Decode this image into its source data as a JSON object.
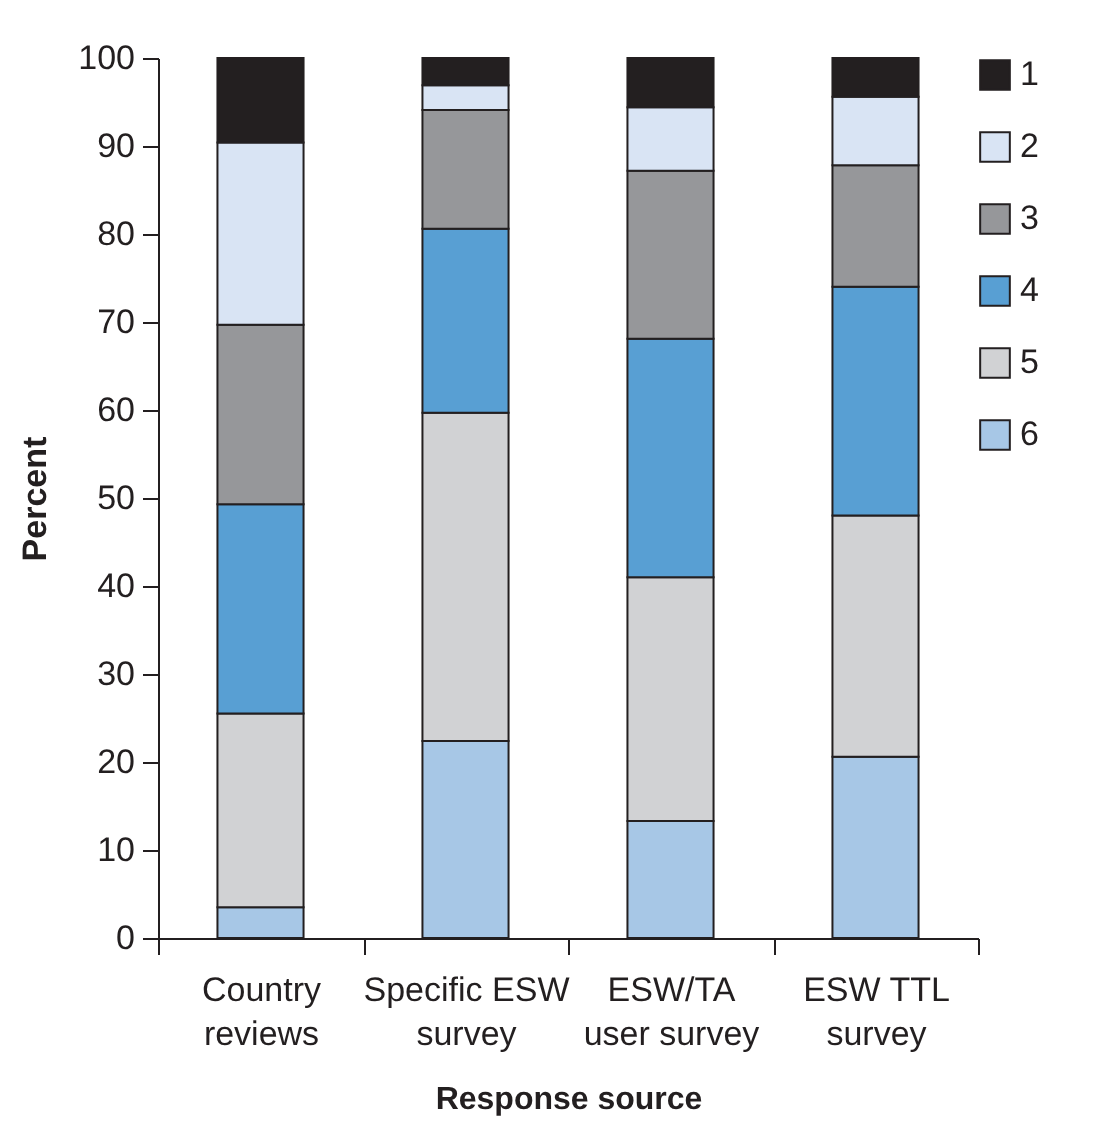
{
  "chart_data": {
    "type": "bar",
    "stacked": true,
    "xlabel": "Response source",
    "ylabel": "Percent",
    "categories": [
      "Country\nreviews",
      "Specific ESW\nsurvey",
      "ESW/TA\nuser survey",
      "ESW TTL\nsurvey"
    ],
    "series": [
      {
        "name": "6",
        "color": "#a7c7e6",
        "values": [
          3.5,
          22.4,
          13.3,
          20.6
        ]
      },
      {
        "name": "5",
        "color": "#d1d2d4",
        "values": [
          22,
          37.3,
          27.7,
          27.4
        ]
      },
      {
        "name": "4",
        "color": "#589fd3",
        "values": [
          23.8,
          20.9,
          27.1,
          26
        ]
      },
      {
        "name": "3",
        "color": "#96979a",
        "values": [
          20.4,
          13.5,
          19.1,
          13.8
        ]
      },
      {
        "name": "2",
        "color": "#d9e4f4",
        "values": [
          20.7,
          2.8,
          7.2,
          7.8
        ]
      },
      {
        "name": "1",
        "color": "#231f20",
        "values": [
          9.6,
          3.1,
          5.6,
          4.4
        ]
      }
    ],
    "ylim": [
      0,
      100
    ],
    "yticks": [
      0,
      10,
      20,
      30,
      40,
      50,
      60,
      70,
      80,
      90,
      100
    ],
    "grid": false,
    "legend": "right"
  }
}
